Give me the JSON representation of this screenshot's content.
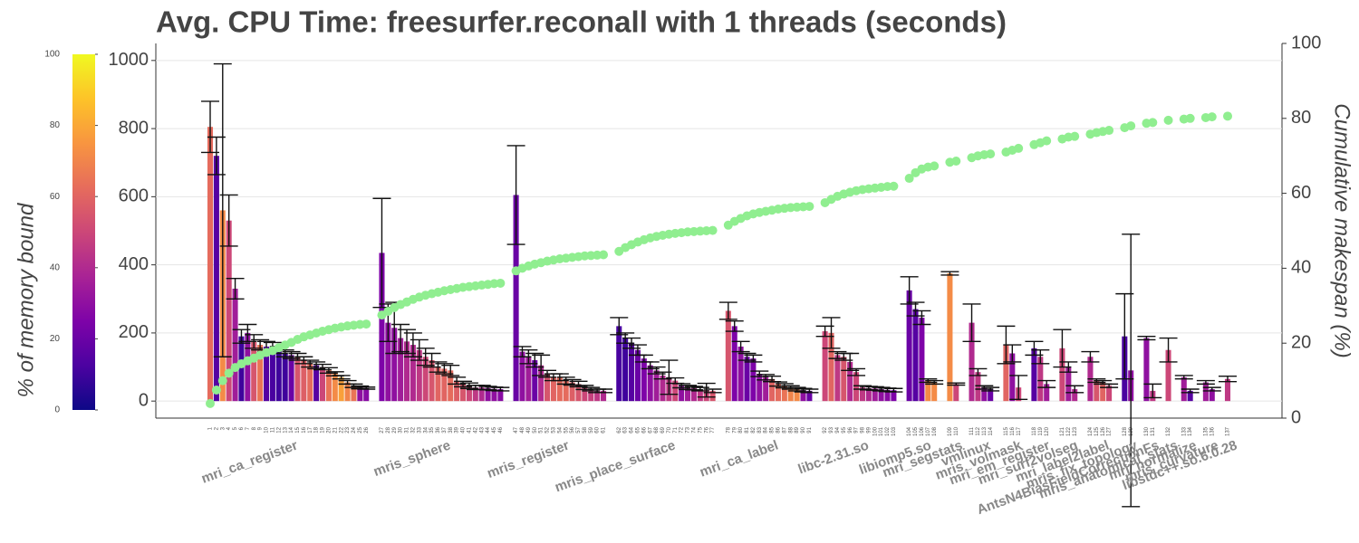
{
  "chart_data": {
    "type": "bar",
    "title": "Avg. CPU Time: freesurfer.reconall with 1 threads (seconds)",
    "colorbar_label": "% of memory bound",
    "y2_label": "Cumulative makespan (%)",
    "colormap": "plasma",
    "colorbar_lim": [
      0,
      100
    ],
    "colorbar_ticks": [
      0,
      20,
      40,
      60,
      80,
      100
    ],
    "ylim": [
      -50,
      1050
    ],
    "yticks": [
      0,
      200,
      400,
      600,
      800,
      1000
    ],
    "y2lim": [
      0,
      100
    ],
    "y2ticks": [
      0,
      20,
      40,
      60,
      80,
      100
    ],
    "grid": true,
    "cumulative_color": "#90ee90",
    "groups": [
      {
        "name": "mri_ca_register",
        "labels": [
          "1",
          "2",
          "3",
          "4",
          "5",
          "6",
          "7",
          "8",
          "9",
          "10",
          "11",
          "12",
          "13",
          "14",
          "15",
          "16",
          "17",
          "18",
          "19",
          "20",
          "21",
          "22",
          "23",
          "24",
          "25",
          "26"
        ],
        "values": [
          805,
          720,
          560,
          530,
          330,
          190,
          200,
          175,
          165,
          160,
          160,
          150,
          140,
          135,
          130,
          120,
          110,
          105,
          100,
          90,
          80,
          70,
          55,
          45,
          40,
          38
        ],
        "errors": [
          75,
          55,
          430,
          75,
          30,
          20,
          25,
          20,
          15,
          15,
          12,
          10,
          10,
          10,
          10,
          10,
          10,
          10,
          8,
          8,
          6,
          5,
          5,
          5,
          4,
          3
        ],
        "memory_bound": [
          62,
          15,
          72,
          50,
          35,
          10,
          30,
          55,
          65,
          15,
          12,
          10,
          10,
          20,
          55,
          58,
          62,
          15,
          50,
          65,
          72,
          78,
          70,
          65,
          30,
          28
        ],
        "cumulative": [
          3.9,
          7.5,
          10,
          12,
          13.5,
          14.5,
          15.3,
          16,
          16.8,
          17.5,
          18,
          18.8,
          19.5,
          20.2,
          21,
          21.7,
          22.2,
          22.7,
          23.2,
          23.6,
          24,
          24.3,
          24.6,
          24.8,
          25,
          25.1
        ]
      },
      {
        "name": "mris_sphere",
        "labels": [
          "27",
          "28",
          "29",
          "30",
          "31",
          "32",
          "33",
          "34",
          "35",
          "36",
          "37",
          "38",
          "39",
          "40",
          "41",
          "42",
          "43",
          "44",
          "45",
          "46"
        ],
        "values": [
          435,
          230,
          215,
          185,
          175,
          165,
          150,
          130,
          120,
          100,
          95,
          90,
          60,
          50,
          45,
          40,
          40,
          38,
          36,
          35
        ],
        "errors": [
          160,
          55,
          75,
          40,
          35,
          35,
          30,
          25,
          20,
          15,
          15,
          15,
          10,
          8,
          8,
          6,
          6,
          5,
          5,
          5
        ],
        "memory_bound": [
          25,
          30,
          30,
          35,
          40,
          40,
          45,
          50,
          55,
          60,
          60,
          62,
          58,
          55,
          50,
          45,
          40,
          30,
          30,
          28
        ],
        "cumulative": [
          27.5,
          28.5,
          29.5,
          30.3,
          31,
          31.7,
          32.3,
          32.8,
          33.2,
          33.6,
          34,
          34.3,
          34.6,
          34.9,
          35.1,
          35.3,
          35.5,
          35.7,
          35.9,
          36
        ]
      },
      {
        "name": "mris_register",
        "labels": [
          "47",
          "48",
          "49",
          "50",
          "51",
          "52",
          "53",
          "54",
          "55",
          "56",
          "57",
          "58",
          "59",
          "60",
          "61"
        ],
        "values": [
          605,
          145,
          130,
          120,
          105,
          80,
          70,
          70,
          60,
          55,
          50,
          40,
          35,
          30,
          30
        ],
        "errors": [
          145,
          15,
          20,
          20,
          30,
          10,
          10,
          10,
          10,
          8,
          8,
          6,
          5,
          5,
          5
        ],
        "memory_bound": [
          20,
          30,
          35,
          20,
          40,
          55,
          60,
          62,
          62,
          58,
          55,
          50,
          48,
          45,
          40
        ],
        "cumulative": [
          39.3,
          40,
          40.6,
          41.1,
          41.5,
          41.9,
          42.2,
          42.5,
          42.7,
          42.9,
          43.1,
          43.3,
          43.4,
          43.5,
          43.6
        ]
      },
      {
        "name": "mris_place_surface",
        "labels": [
          "62",
          "63",
          "64",
          "65",
          "66",
          "67",
          "68",
          "69",
          "70",
          "71",
          "72",
          "73",
          "74",
          "75",
          "76",
          "77"
        ],
        "values": [
          220,
          185,
          170,
          150,
          125,
          105,
          90,
          75,
          70,
          60,
          45,
          40,
          38,
          35,
          32,
          30
        ],
        "errors": [
          25,
          15,
          15,
          15,
          10,
          10,
          10,
          10,
          50,
          8,
          6,
          6,
          5,
          5,
          20,
          5
        ],
        "memory_bound": [
          12,
          10,
          15,
          20,
          25,
          30,
          35,
          40,
          45,
          50,
          30,
          35,
          40,
          45,
          50,
          55
        ],
        "cumulative": [
          44.5,
          45.5,
          46.3,
          47,
          47.6,
          48.1,
          48.5,
          48.8,
          49.1,
          49.3,
          49.5,
          49.7,
          49.8,
          49.9,
          50,
          50.1
        ]
      },
      {
        "name": "mri_ca_label",
        "labels": [
          "78",
          "79",
          "80",
          "81",
          "82",
          "83",
          "84",
          "85",
          "86",
          "87",
          "88",
          "89",
          "90",
          "91"
        ],
        "values": [
          265,
          220,
          160,
          130,
          125,
          80,
          70,
          65,
          50,
          45,
          40,
          35,
          32,
          30
        ],
        "errors": [
          25,
          15,
          15,
          10,
          10,
          8,
          8,
          8,
          6,
          6,
          5,
          5,
          5,
          5
        ],
        "memory_bound": [
          55,
          25,
          30,
          20,
          25,
          30,
          35,
          60,
          62,
          65,
          70,
          72,
          30,
          20
        ],
        "cumulative": [
          51.5,
          52.5,
          53.3,
          54,
          54.5,
          54.9,
          55.2,
          55.5,
          55.8,
          56,
          56.2,
          56.3,
          56.4,
          56.5
        ]
      },
      {
        "name": "libc-2.31.so",
        "labels": [
          "92",
          "93",
          "94",
          "95",
          "96",
          "97",
          "98",
          "99",
          "100",
          "101",
          "102",
          "103"
        ],
        "values": [
          205,
          200,
          135,
          130,
          115,
          85,
          40,
          38,
          37,
          35,
          33,
          32
        ],
        "errors": [
          15,
          45,
          10,
          10,
          25,
          10,
          5,
          5,
          5,
          5,
          5,
          5
        ],
        "memory_bound": [
          50,
          60,
          45,
          55,
          40,
          50,
          45,
          40,
          35,
          30,
          28,
          25
        ],
        "cumulative": [
          57.5,
          58.4,
          59.2,
          59.8,
          60.3,
          60.7,
          61,
          61.2,
          61.4,
          61.6,
          61.8,
          61.9
        ]
      },
      {
        "name": "libiomp5.so",
        "labels": [
          "104",
          "105",
          "106",
          "107",
          "108"
        ],
        "values": [
          325,
          270,
          245,
          60,
          55
        ],
        "errors": [
          40,
          20,
          20,
          5,
          5
        ],
        "memory_bound": [
          20,
          15,
          25,
          72,
          72
        ],
        "cumulative": [
          64,
          65.5,
          66.5,
          67,
          67.3
        ]
      },
      {
        "name": "mri_segstats",
        "labels": [
          "109",
          "110"
        ],
        "values": [
          375,
          50
        ],
        "errors": [
          5,
          3
        ],
        "memory_bound": [
          72,
          50
        ],
        "cumulative": [
          68.3,
          68.6
        ]
      },
      {
        "name": "vmlinux",
        "labels": [
          "111",
          "112",
          "113",
          "114"
        ],
        "values": [
          230,
          85,
          40,
          35
        ],
        "errors": [
          55,
          10,
          5,
          5
        ],
        "memory_bound": [
          40,
          45,
          30,
          20
        ],
        "cumulative": [
          69.5,
          70,
          70.3,
          70.5
        ]
      },
      {
        "name": "mris_volmask",
        "labels": [
          "115",
          "116",
          "117"
        ],
        "values": [
          165,
          140,
          40
        ],
        "errors": [
          55,
          25,
          35
        ],
        "memory_bound": [
          60,
          30,
          50
        ],
        "cumulative": [
          71,
          71.5,
          72
        ]
      },
      {
        "name": "mri_em_register",
        "labels": [
          "118",
          "119",
          "120"
        ],
        "values": [
          155,
          130,
          50
        ],
        "errors": [
          20,
          20,
          10
        ],
        "memory_bound": [
          15,
          45,
          35
        ],
        "cumulative": [
          73,
          73.5,
          74
        ]
      },
      {
        "name": "mri_surf2volseg",
        "labels": [
          "121",
          "122",
          "123"
        ],
        "values": [
          155,
          100,
          35
        ],
        "errors": [
          55,
          15,
          10
        ],
        "memory_bound": [
          50,
          35,
          40
        ],
        "cumulative": [
          74.5,
          75,
          75.2
        ]
      },
      {
        "name": "mri_label2label",
        "labels": [
          "124",
          "125",
          "126",
          "127"
        ],
        "values": [
          130,
          60,
          55,
          45
        ],
        "errors": [
          15,
          5,
          5,
          5
        ],
        "memory_bound": [
          40,
          55,
          60,
          50
        ],
        "cumulative": [
          75.8,
          76.2,
          76.5,
          76.8
        ]
      },
      {
        "name": "mris_fix_topology",
        "labels": [
          "128",
          "129"
        ],
        "values": [
          190,
          90
        ],
        "errors": [
          125,
          400
        ],
        "memory_bound": [
          12,
          30
        ],
        "cumulative": [
          77.5,
          78
        ]
      },
      {
        "name": "AntsN4BiasFieldCorrectionFs",
        "labels": [
          "130",
          "131"
        ],
        "values": [
          185,
          30
        ],
        "errors": [
          5,
          20
        ],
        "memory_bound": [
          30,
          45
        ],
        "cumulative": [
          78.7,
          78.9
        ]
      },
      {
        "name": "mris_anatomical_stats",
        "labels": [
          "132"
        ],
        "values": [
          150
        ],
        "errors": [
          35
        ],
        "memory_bound": [
          50
        ],
        "cumulative": [
          79.5
        ]
      },
      {
        "name": "mri_normalize",
        "labels": [
          "133",
          "134"
        ],
        "values": [
          70,
          30
        ],
        "errors": [
          5,
          5
        ],
        "memory_bound": [
          35,
          15
        ],
        "cumulative": [
          79.8,
          80
        ]
      },
      {
        "name": "mris_curvature",
        "labels": [
          "135",
          "136"
        ],
        "values": [
          55,
          35
        ],
        "errors": [
          5,
          5
        ],
        "memory_bound": [
          35,
          30
        ],
        "cumulative": [
          80.2,
          80.4
        ]
      },
      {
        "name": "libstdc++.so.6.0.28",
        "labels": [
          "137"
        ],
        "values": [
          65
        ],
        "errors": [
          8
        ],
        "memory_bound": [
          45
        ],
        "cumulative": [
          80.6
        ]
      }
    ]
  }
}
